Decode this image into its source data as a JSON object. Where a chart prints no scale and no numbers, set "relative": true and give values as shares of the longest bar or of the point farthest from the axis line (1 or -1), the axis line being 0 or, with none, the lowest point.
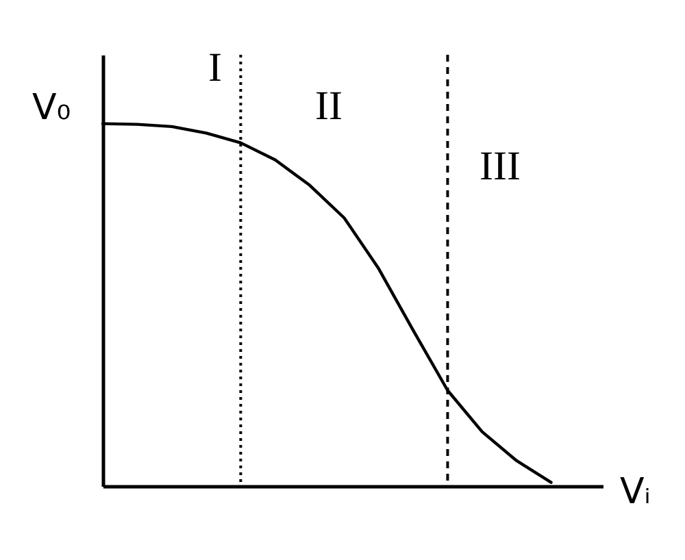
{
  "chart_data": {
    "type": "line",
    "relative": true,
    "xlabel": "Vᵢ",
    "ylabel": "V₀",
    "grid": false,
    "marker": "none",
    "line_style": "solid",
    "categories": [
      null,
      null,
      null,
      null,
      null,
      null,
      null,
      null,
      null,
      null,
      null,
      null,
      null,
      null
    ],
    "series": [
      {
        "color": "#000000",
        "values": [
          1,
          0.998,
          0.992,
          0.974,
          0.947,
          0.9,
          0.83,
          0.74,
          0.6,
          0.43,
          0.264,
          0.15,
          0.07,
          0.01
        ]
      }
    ],
    "annotations": [
      "I",
      "II",
      "III"
    ]
  }
}
